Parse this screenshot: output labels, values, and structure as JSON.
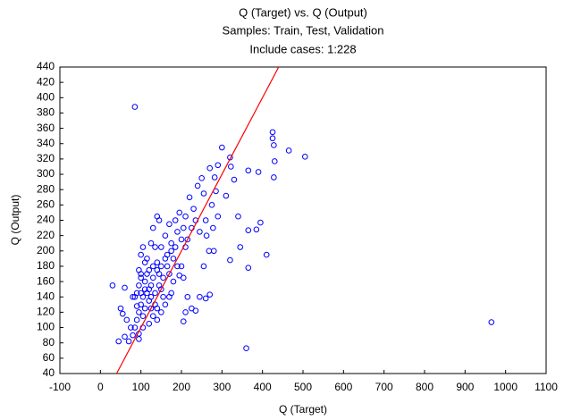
{
  "chart_data": {
    "type": "scatter",
    "title": "Q (Target) vs. Q (Output)",
    "subtitle": "Samples: Train, Test, Validation",
    "annotation": "Include cases: 1:228",
    "x_label": "Q (Target)",
    "y_label": "Q (Output)",
    "xlim": [
      -100,
      1100
    ],
    "xticks": [
      -100,
      0,
      100,
      200,
      300,
      400,
      500,
      600,
      700,
      800,
      900,
      1000,
      1100
    ],
    "ylim": [
      40,
      440
    ],
    "yticks": [
      40,
      60,
      80,
      100,
      120,
      140,
      160,
      180,
      200,
      220,
      240,
      260,
      280,
      300,
      320,
      340,
      360,
      380,
      400,
      420,
      440
    ],
    "grid": false,
    "series": [
      {
        "color": "#0000ff",
        "x": [
          85,
          965,
          360,
          505,
          465,
          425,
          425,
          428,
          430,
          428,
          410,
          395,
          385,
          390,
          365,
          365,
          340,
          345,
          365,
          320,
          300,
          320,
          322,
          330,
          310,
          290,
          282,
          270,
          285,
          275,
          290,
          278,
          262,
          268,
          255,
          270,
          260,
          245,
          235,
          225,
          210,
          205,
          215,
          205,
          195,
          190,
          180,
          175,
          185,
          195,
          210,
          220,
          230,
          240,
          250,
          255,
          235,
          225,
          245,
          260,
          280,
          205,
          210,
          215,
          200,
          190,
          170,
          160,
          150,
          135,
          140,
          145,
          130,
          160,
          165,
          170,
          155,
          150,
          145,
          140,
          130,
          125,
          120,
          115,
          110,
          120,
          125,
          130,
          140,
          150,
          160,
          170,
          175,
          155,
          135,
          110,
          105,
          100,
          95,
          90,
          85,
          80,
          95,
          70,
          60,
          45,
          50,
          55,
          65,
          30,
          60,
          80,
          90,
          95,
          100,
          105,
          110,
          115,
          100,
          95,
          125,
          140,
          150,
          165,
          175,
          185,
          120,
          130,
          115,
          105,
          100,
          95,
          75,
          90,
          105,
          120,
          135,
          145,
          110,
          100,
          85,
          200,
          180,
          140,
          125
        ],
        "values": [
          388,
          107,
          73,
          323,
          331,
          355,
          347,
          338,
          317,
          296,
          195,
          237,
          228,
          303,
          227,
          305,
          245,
          205,
          178,
          188,
          335,
          322,
          310,
          293,
          272,
          312,
          296,
          308,
          278,
          260,
          245,
          230,
          220,
          200,
          180,
          143,
          138,
          140,
          122,
          125,
          120,
          108,
          140,
          165,
          168,
          180,
          190,
          210,
          240,
          250,
          245,
          270,
          255,
          285,
          295,
          275,
          240,
          230,
          225,
          240,
          200,
          230,
          205,
          215,
          215,
          225,
          235,
          220,
          205,
          205,
          245,
          240,
          230,
          190,
          180,
          170,
          165,
          150,
          170,
          175,
          165,
          155,
          150,
          145,
          160,
          135,
          125,
          115,
          110,
          120,
          130,
          140,
          145,
          140,
          145,
          125,
          115,
          130,
          120,
          110,
          100,
          90,
          92,
          82,
          88,
          82,
          125,
          118,
          110,
          155,
          152,
          140,
          145,
          175,
          195,
          205,
          185,
          190,
          165,
          155,
          210,
          185,
          180,
          195,
          200,
          205,
          175,
          180,
          170,
          140,
          145,
          85,
          100,
          128,
          100,
          105,
          130,
          155,
          150,
          170,
          140,
          180,
          160,
          125,
          140
        ]
      }
    ],
    "reference_line": {
      "color": "#ff0000",
      "x": [
        40,
        440
      ],
      "values": [
        40,
        440
      ]
    }
  }
}
